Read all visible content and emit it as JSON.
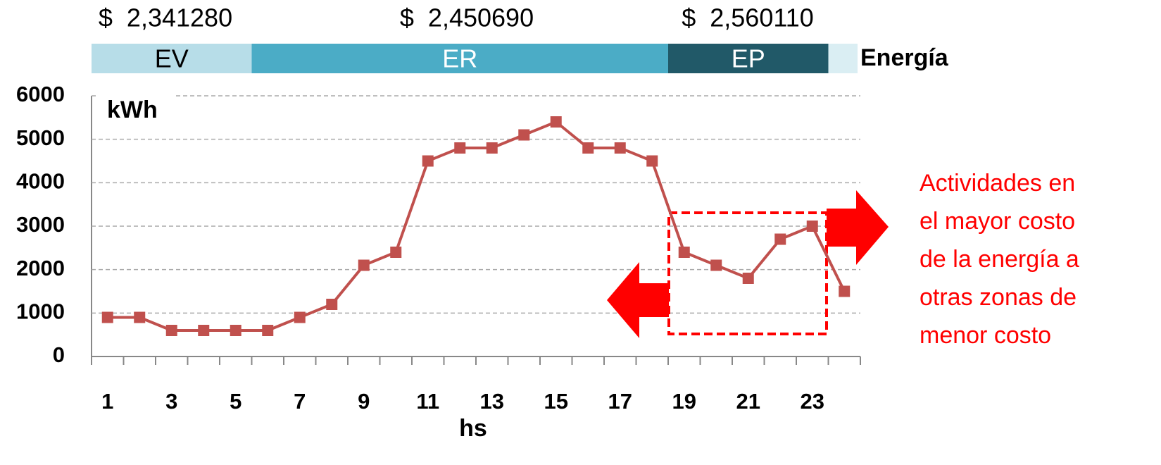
{
  "chart_data": {
    "type": "line",
    "y_label": "kWh",
    "x_label": "hs",
    "legend_label": "Energía",
    "categories": [
      1,
      null,
      3,
      null,
      5,
      null,
      7,
      null,
      9,
      null,
      11,
      null,
      13,
      null,
      15,
      null,
      17,
      null,
      19,
      null,
      21,
      null,
      23,
      null
    ],
    "series": [
      {
        "color": "#c0504d",
        "values": [
          900,
          900,
          600,
          600,
          600,
          600,
          900,
          1200,
          2100,
          2400,
          4500,
          4800,
          4800,
          5100,
          5400,
          4800,
          4800,
          4500,
          2400,
          2100,
          1800,
          2700,
          3000,
          1500
        ]
      }
    ],
    "ylim": [
      0,
      6000
    ],
    "yticks": [
      0,
      1000,
      2000,
      3000,
      4000,
      5000,
      6000
    ],
    "grid": true,
    "bands": [
      {
        "label": "EV",
        "price": "$  2,341280",
        "color": "#b7dde8"
      },
      {
        "label": "ER",
        "price": "$  2,450690",
        "color": "#4bacc6"
      },
      {
        "label": "EP",
        "price": "$  2,560110",
        "color": "#215968"
      }
    ],
    "annotation": [
      "Actividades en",
      "el mayor costo",
      "de la energía a",
      "otras zonas de",
      "menor costo"
    ]
  }
}
